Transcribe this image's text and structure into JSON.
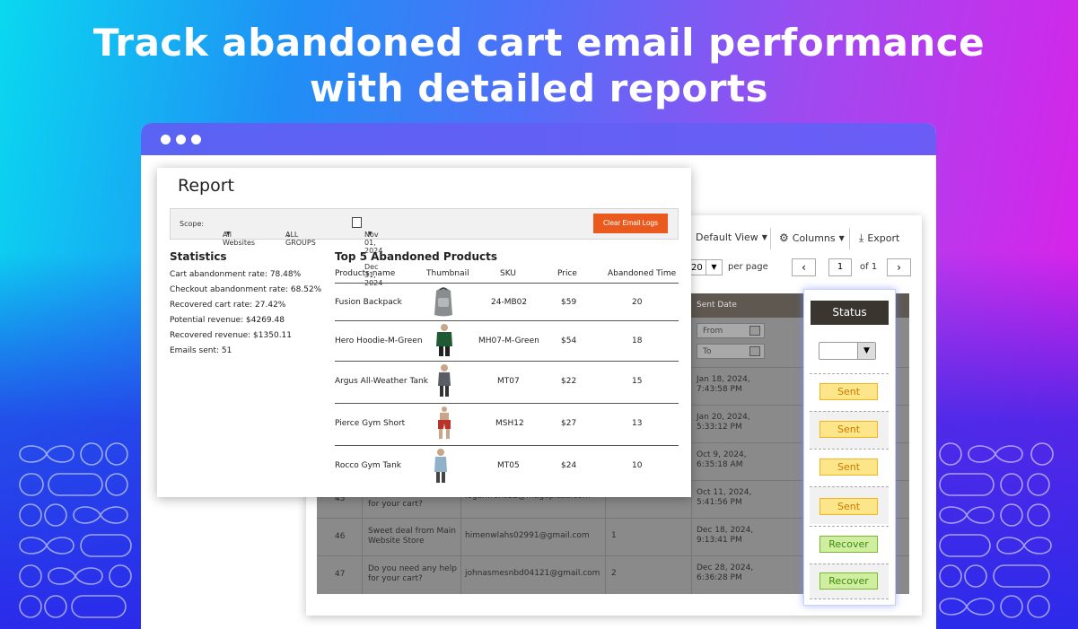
{
  "headline": {
    "line1": "Track abandoned cart email performance",
    "line2": "with detailed reports"
  },
  "colors": {
    "accent": "#ea5a1e",
    "browser_bar": "#5a63f3",
    "sent": "#fde68a",
    "recover": "#cfeea0"
  },
  "grid": {
    "toolbar": {
      "default_view": "Default View",
      "columns": "Columns",
      "export": "Export",
      "per_page_value": "20",
      "per_page_label": "per page",
      "page": "1",
      "of_pages": "of 1",
      "prev_icon": "chevron-left-icon",
      "next_icon": "chevron-right-icon"
    },
    "header": {
      "sent_date": "Sent Date"
    },
    "filters": {
      "from": "From",
      "to": "To"
    },
    "rows": [
      {
        "id": "",
        "subject": "",
        "email": "",
        "count": "",
        "date": "Jan 18, 2024, 7:43:58 PM"
      },
      {
        "id": "",
        "subject": "",
        "email": "",
        "count": "",
        "date": "Jan 20, 2024, 5:33:12 PM"
      },
      {
        "id": "",
        "subject": "",
        "email": "",
        "count": "",
        "date": "Oct 9, 2024, 6:35:18 AM"
      },
      {
        "id": "45",
        "subject": "for your cart?",
        "email": "loganfrans22@mageplaza.com",
        "count": "",
        "date": "Oct 11, 2024, 5:41:56 PM"
      },
      {
        "id": "46",
        "subject": "Sweet deal from Main Website Store",
        "email": "himenwlahs02991@gmail.com",
        "count": "1",
        "date": "Dec 18, 2024, 9:13:41 PM"
      },
      {
        "id": "47",
        "subject": "Do you need any help for your cart?",
        "email": "johnasmesnbd04121@gmail.com",
        "count": "2",
        "date": "Dec 28, 2024, 6:36:28 PM"
      }
    ]
  },
  "status": {
    "header": "Status",
    "values": [
      "Sent",
      "Sent",
      "Sent",
      "Sent",
      "Recover",
      "Recover"
    ]
  },
  "report": {
    "title": "Report",
    "filters": {
      "scope_label": "Scope:",
      "scope_value": "All Websites",
      "group_value": "ALL GROUPS",
      "date_range": "Nov 01, 2024 - Dec 31, 2024",
      "clear_button": "Clear Email Logs"
    },
    "statistics": {
      "title": "Statistics",
      "items": [
        "Cart abandonment rate: 78.48%",
        "Checkout abandonment rate: 68.52%",
        "Recovered cart rate: 27.42%",
        "Potential revenue: $4269.48",
        "Recovered revenue: $1350.11",
        "Emails sent: 51"
      ]
    },
    "top_products": {
      "title": "Top 5 Abandoned Products",
      "columns": [
        "Products name",
        "Thumbnail",
        "SKU",
        "Price",
        "Abandoned Time"
      ],
      "rows": [
        {
          "name": "Fusion Backpack",
          "sku": "24-MB02",
          "price": "$59",
          "time": "20"
        },
        {
          "name": "Hero Hoodie-M-Green",
          "sku": "MH07-M-Green",
          "price": "$54",
          "time": "18"
        },
        {
          "name": "Argus All-Weather Tank",
          "sku": "MT07",
          "price": "$22",
          "time": "15"
        },
        {
          "name": "Pierce Gym Short",
          "sku": "MSH12",
          "price": "$27",
          "time": "13"
        },
        {
          "name": "Rocco Gym Tank",
          "sku": "MT05",
          "price": "$24",
          "time": "10"
        }
      ]
    }
  }
}
